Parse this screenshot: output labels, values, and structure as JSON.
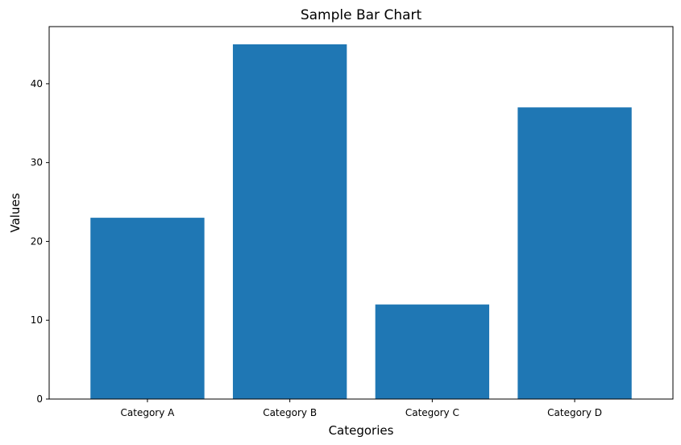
{
  "chart_data": {
    "type": "bar",
    "title": "Sample Bar Chart",
    "xlabel": "Categories",
    "ylabel": "Values",
    "categories": [
      "Category A",
      "Category B",
      "Category C",
      "Category D"
    ],
    "values": [
      23,
      45,
      12,
      37
    ],
    "ylim": [
      0,
      47.25
    ],
    "yticks": [
      0,
      10,
      20,
      30,
      40
    ],
    "grid": false,
    "legend": "none"
  },
  "colors": {
    "bar": "#1f77b4",
    "axis": "#000000",
    "background": "#ffffff"
  }
}
